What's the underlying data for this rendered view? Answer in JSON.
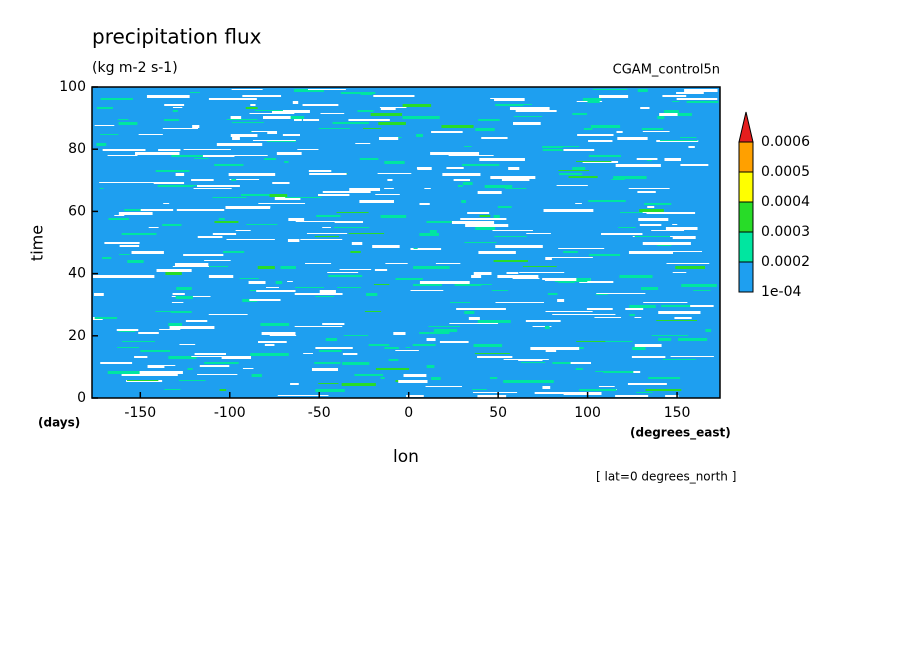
{
  "chart_data": {
    "type": "contour",
    "title": "precipitation flux",
    "subtitle": "(kg m-2 s-1)",
    "source_label": "CGAM_control5n",
    "y_label": "time",
    "y_units": "(days)",
    "x_label": "lon",
    "x_units": "(degrees_east)",
    "annotation": "[ lat=0 degrees_north ]",
    "xlim": [
      -177,
      174
    ],
    "xticks": [
      -150,
      -100,
      -50,
      0,
      50,
      100,
      150
    ],
    "ylim": [
      0,
      100
    ],
    "yticks": [
      0,
      20,
      40,
      60,
      80,
      100
    ],
    "levels": [
      {
        "value": 0.0001,
        "label": "1e-04"
      },
      0.0002,
      0.0003,
      0.0004,
      0.0005,
      0.0006
    ],
    "colors": [
      "#1e9ff0",
      "#00e6a0",
      "#28dc28",
      "#ffff00",
      "#ffa000",
      "#e61e1e"
    ]
  }
}
